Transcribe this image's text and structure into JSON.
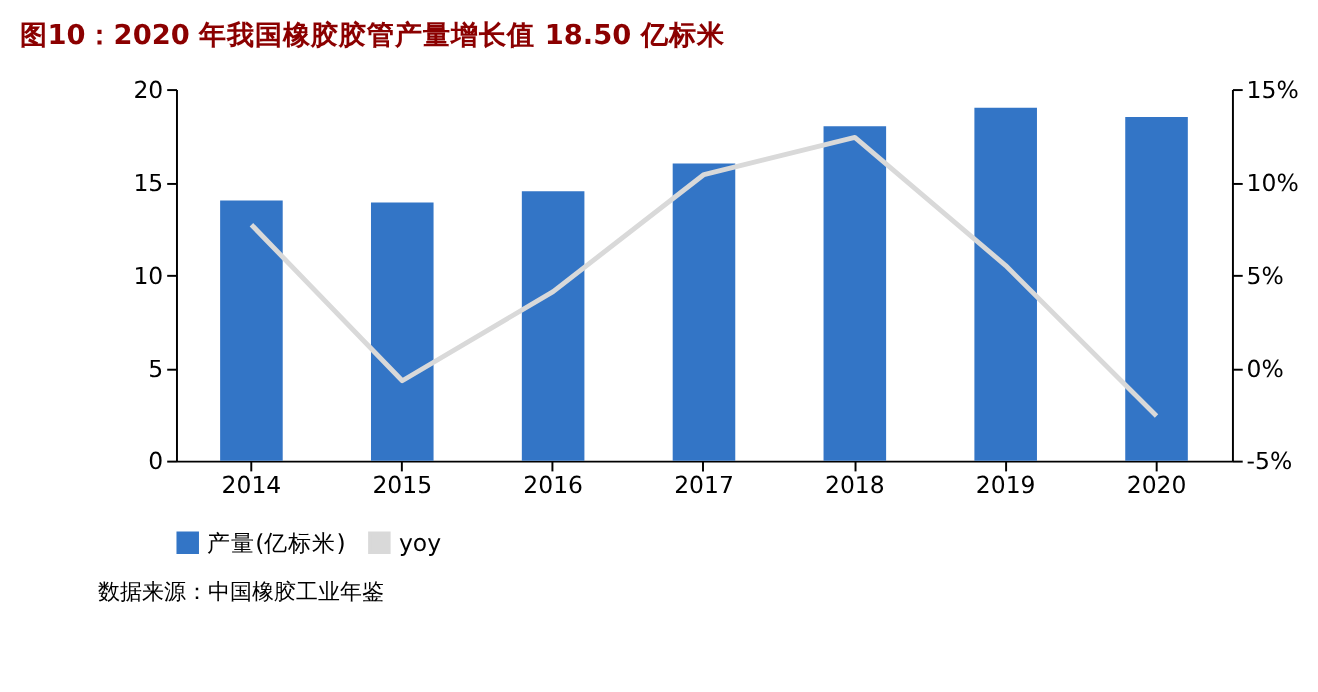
{
  "chart_data": {
    "type": "bar",
    "title": "图10：2020 年我国橡胶胶管产量增长值 18.50 亿标米",
    "categories": [
      "2014",
      "2015",
      "2016",
      "2017",
      "2018",
      "2019",
      "2020"
    ],
    "series": [
      {
        "name": "产量(亿标米)",
        "color": "#3375c6",
        "values": [
          14.0,
          13.9,
          14.5,
          16.0,
          18.0,
          19.0,
          18.5
        ]
      },
      {
        "name": "yoy",
        "type": "line",
        "axis": "y2",
        "color": "#d9d9d9",
        "values": [
          7.7,
          -0.7,
          4.1,
          10.4,
          12.4,
          5.5,
          -2.6
        ]
      }
    ],
    "ylim": [
      0,
      20
    ],
    "yticks": [
      0,
      5,
      10,
      15,
      20
    ],
    "y2lim": [
      -5,
      15
    ],
    "y2ticks": [
      {
        "value": -5,
        "label": "-5%"
      },
      {
        "value": 0,
        "label": "0%"
      },
      {
        "value": 5,
        "label": "5%"
      },
      {
        "value": 10,
        "label": "10%"
      },
      {
        "value": 15,
        "label": "15%"
      }
    ],
    "grid": false,
    "legend": "bottom",
    "marker": "none",
    "line_style": "solid",
    "annotations": [
      "数据来源：中国橡胶工业年鉴"
    ]
  }
}
